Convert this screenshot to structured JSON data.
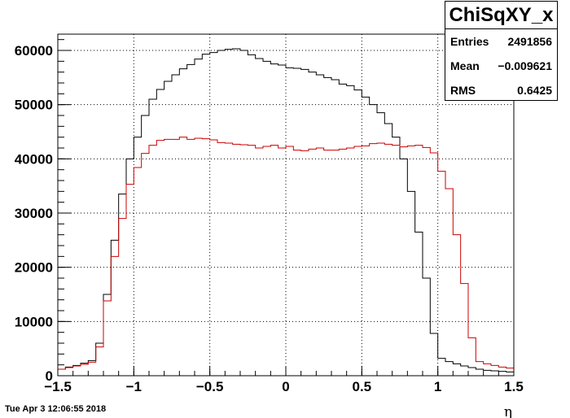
{
  "chart_data": {
    "type": "histogram",
    "title": "",
    "xlabel": "η",
    "ylabel": "",
    "xlim": [
      -1.5,
      1.5
    ],
    "ylim": [
      0,
      63000
    ],
    "grid": true,
    "x_ticks": [
      "−1.5",
      "−1",
      "−0.5",
      "0",
      "0.5",
      "1",
      "1.5"
    ],
    "x_tick_values": [
      -1.5,
      -1,
      -0.5,
      0,
      0.5,
      1,
      1.5
    ],
    "y_ticks": [
      "0",
      "10000",
      "20000",
      "30000",
      "40000",
      "50000",
      "60000"
    ],
    "y_tick_values": [
      0,
      10000,
      20000,
      30000,
      40000,
      50000,
      60000
    ],
    "bin_edges_start": -1.5,
    "bin_width": 0.05,
    "series": [
      {
        "color": "#000000",
        "values": [
          1200,
          1600,
          1900,
          2300,
          2800,
          6000,
          15000,
          25000,
          33500,
          40000,
          44000,
          48000,
          51000,
          52800,
          54300,
          55500,
          56600,
          57400,
          58400,
          59300,
          59600,
          60000,
          60200,
          60300,
          60000,
          59200,
          58500,
          58000,
          57500,
          57300,
          56800,
          56700,
          56500,
          56000,
          55500,
          55000,
          54600,
          53800,
          53500,
          52700,
          51400,
          50000,
          48500,
          46500,
          44000,
          40000,
          34000,
          26500,
          18000,
          7800,
          3200,
          2600,
          2200,
          1800,
          1500,
          1200,
          1000,
          900,
          800,
          700
        ]
      },
      {
        "color": "#cc0000",
        "values": [
          1200,
          1500,
          1800,
          2100,
          2500,
          5300,
          13800,
          22000,
          29000,
          35300,
          38400,
          41000,
          42500,
          43400,
          43600,
          43600,
          44000,
          43600,
          43800,
          43700,
          43500,
          43000,
          42900,
          42700,
          42600,
          42500,
          42000,
          42300,
          42500,
          42000,
          42300,
          41600,
          41500,
          41800,
          42000,
          41600,
          41600,
          41800,
          42000,
          42300,
          42400,
          42800,
          42900,
          42700,
          42500,
          42200,
          42400,
          42500,
          42100,
          41100,
          37700,
          34500,
          26000,
          17000,
          7000,
          2600,
          2200,
          1900,
          1600,
          1400
        ]
      }
    ]
  },
  "stats": {
    "name": "ChiSqXY_x",
    "entries_label": "Entries",
    "entries_value": "2491856",
    "mean_label": "Mean",
    "mean_value": "−0.009621",
    "rms_label": "RMS",
    "rms_value": "0.6425"
  },
  "footer": {
    "date": "Tue Apr  3 12:06:55 2018"
  }
}
